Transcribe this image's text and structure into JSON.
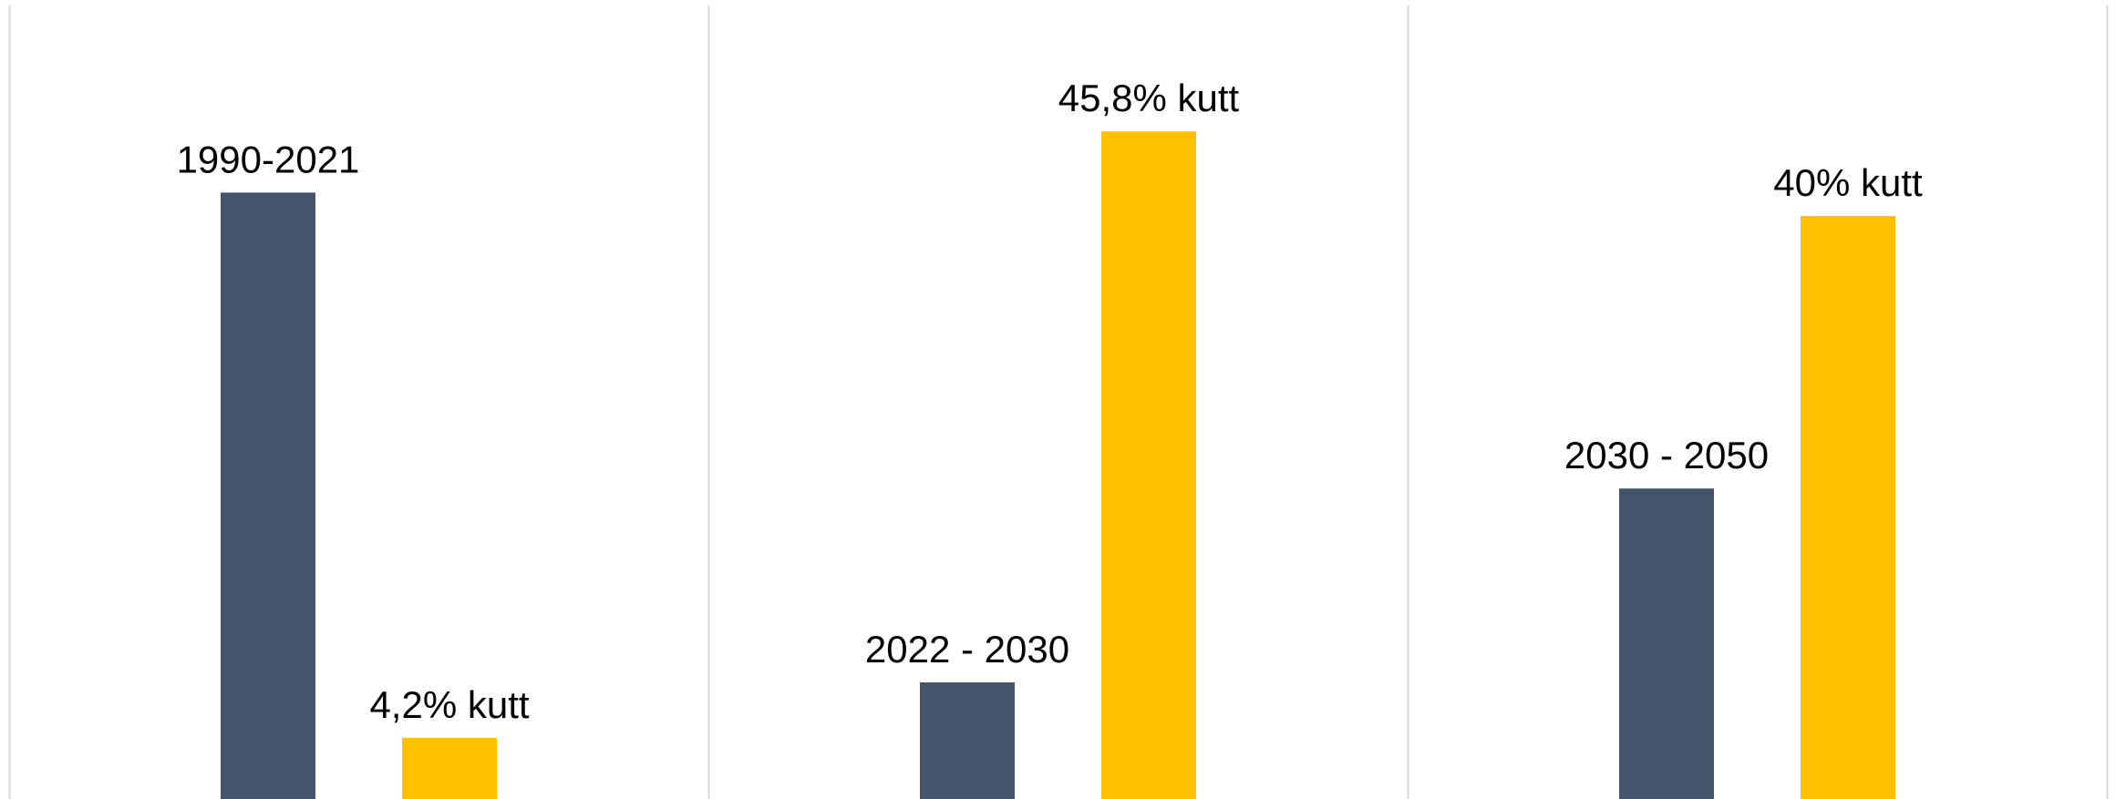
{
  "chart_data": {
    "type": "bar",
    "grid": "vertical-separators",
    "colors": {
      "period": "#44546A",
      "cut": "#FFC000",
      "separator": "#D9D9D9"
    },
    "groups": [
      {
        "period": {
          "label": "1990-2021",
          "value": 41.6
        },
        "cut": {
          "label": "4,2% kutt",
          "value": 4.2
        }
      },
      {
        "period": {
          "label": "2022 - 2030",
          "value": 8
        },
        "cut": {
          "label": "45,8% kutt",
          "value": 45.8
        }
      },
      {
        "period": {
          "label": "2030 - 2050",
          "value": 21.3
        },
        "cut": {
          "label": "40% kutt",
          "value": 40
        }
      }
    ]
  }
}
